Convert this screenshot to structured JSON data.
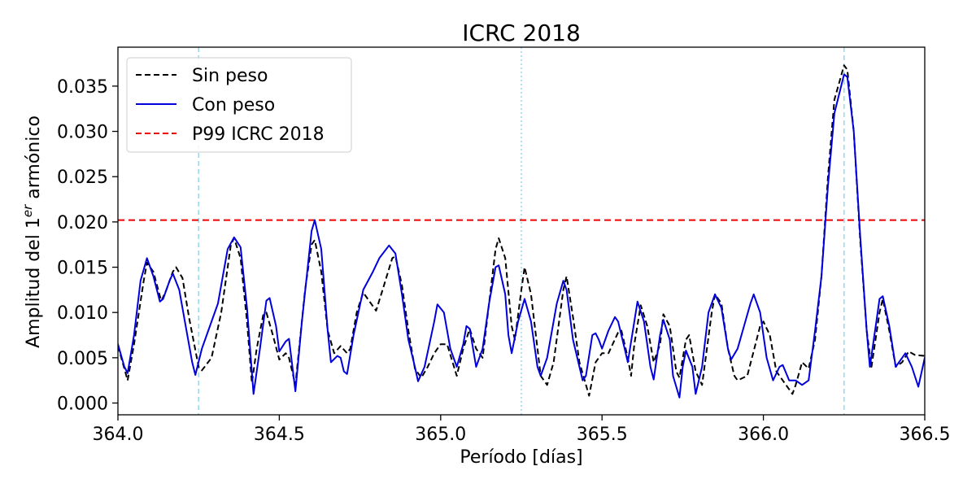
{
  "chart_data": {
    "type": "line",
    "title": "ICRC 2018",
    "xlabel": "Período [días]",
    "ylabel_prefix": "Amplitud del 1",
    "ylabel_sup": "er",
    "ylabel_suffix": " armónico",
    "xlim": [
      364.0,
      366.5
    ],
    "ylim": [
      -0.0013,
      0.0393
    ],
    "xticks": [
      364.0,
      364.5,
      365.0,
      365.5,
      366.0,
      366.5
    ],
    "xtick_labels": [
      "364.0",
      "364.5",
      "365.0",
      "365.5",
      "366.0",
      "366.5"
    ],
    "yticks": [
      0.0,
      0.005,
      0.01,
      0.015,
      0.02,
      0.025,
      0.03,
      0.035
    ],
    "ytick_labels": [
      "0.000",
      "0.005",
      "0.010",
      "0.015",
      "0.020",
      "0.025",
      "0.030",
      "0.035"
    ],
    "legend_position": "top-left",
    "vlines": [
      364.25,
      365.25,
      366.25
    ],
    "colors": {
      "sin_peso": "#000000",
      "con_peso": "#0000dd",
      "p99": "#ee0000",
      "vline": "#9fd8e8"
    },
    "series": [
      {
        "name": "Sin peso",
        "style": "dashed",
        "color": "#000000",
        "points": [
          [
            364.0,
            0.0063
          ],
          [
            364.02,
            0.0038
          ],
          [
            364.03,
            0.0025
          ],
          [
            364.05,
            0.0065
          ],
          [
            364.08,
            0.0135
          ],
          [
            364.09,
            0.0155
          ],
          [
            364.11,
            0.0145
          ],
          [
            364.13,
            0.0118
          ],
          [
            364.135,
            0.0113
          ],
          [
            364.15,
            0.0125
          ],
          [
            364.17,
            0.0145
          ],
          [
            364.18,
            0.015
          ],
          [
            364.2,
            0.0138
          ],
          [
            364.22,
            0.0095
          ],
          [
            364.25,
            0.004
          ],
          [
            364.26,
            0.0036
          ],
          [
            364.29,
            0.005
          ],
          [
            364.32,
            0.01
          ],
          [
            364.35,
            0.0175
          ],
          [
            364.36,
            0.0182
          ],
          [
            364.38,
            0.016
          ],
          [
            364.4,
            0.009
          ],
          [
            364.415,
            0.0022
          ],
          [
            364.43,
            0.006
          ],
          [
            364.45,
            0.0097
          ],
          [
            364.46,
            0.01
          ],
          [
            364.48,
            0.0075
          ],
          [
            364.5,
            0.0048
          ],
          [
            364.52,
            0.0055
          ],
          [
            364.53,
            0.005
          ],
          [
            364.55,
            0.002
          ],
          [
            364.58,
            0.0125
          ],
          [
            364.6,
            0.0175
          ],
          [
            364.61,
            0.018
          ],
          [
            364.63,
            0.0145
          ],
          [
            364.65,
            0.008
          ],
          [
            364.67,
            0.0055
          ],
          [
            364.69,
            0.0063
          ],
          [
            364.71,
            0.0055
          ],
          [
            364.72,
            0.006
          ],
          [
            364.74,
            0.01
          ],
          [
            364.76,
            0.0122
          ],
          [
            364.78,
            0.0112
          ],
          [
            364.8,
            0.0102
          ],
          [
            364.82,
            0.0125
          ],
          [
            364.85,
            0.016
          ],
          [
            364.86,
            0.0162
          ],
          [
            364.88,
            0.013
          ],
          [
            364.9,
            0.008
          ],
          [
            364.92,
            0.0038
          ],
          [
            364.94,
            0.0028
          ],
          [
            364.96,
            0.004
          ],
          [
            364.98,
            0.0055
          ],
          [
            365.0,
            0.0065
          ],
          [
            365.02,
            0.0065
          ],
          [
            365.05,
            0.003
          ],
          [
            365.07,
            0.006
          ],
          [
            365.09,
            0.0082
          ],
          [
            365.11,
            0.006
          ],
          [
            365.13,
            0.005
          ],
          [
            365.15,
            0.011
          ],
          [
            365.17,
            0.017
          ],
          [
            365.18,
            0.0182
          ],
          [
            365.2,
            0.016
          ],
          [
            365.22,
            0.0085
          ],
          [
            365.23,
            0.007
          ],
          [
            365.25,
            0.0125
          ],
          [
            365.26,
            0.015
          ],
          [
            365.28,
            0.012
          ],
          [
            365.31,
            0.003
          ],
          [
            365.33,
            0.002
          ],
          [
            365.35,
            0.0045
          ],
          [
            365.38,
            0.0125
          ],
          [
            365.39,
            0.014
          ],
          [
            365.41,
            0.0095
          ],
          [
            365.43,
            0.0045
          ],
          [
            365.46,
            0.0008
          ],
          [
            365.48,
            0.0045
          ],
          [
            365.5,
            0.0055
          ],
          [
            365.52,
            0.0055
          ],
          [
            365.55,
            0.0078
          ],
          [
            365.56,
            0.008
          ],
          [
            365.58,
            0.005
          ],
          [
            365.59,
            0.003
          ],
          [
            365.6,
            0.0065
          ],
          [
            365.62,
            0.0108
          ],
          [
            365.64,
            0.0085
          ],
          [
            365.66,
            0.0045
          ],
          [
            365.68,
            0.0065
          ],
          [
            365.69,
            0.0098
          ],
          [
            365.71,
            0.0085
          ],
          [
            365.73,
            0.0035
          ],
          [
            365.74,
            0.0028
          ],
          [
            365.76,
            0.007
          ],
          [
            365.77,
            0.0075
          ],
          [
            365.79,
            0.0035
          ],
          [
            365.81,
            0.002
          ],
          [
            365.84,
            0.01
          ],
          [
            365.85,
            0.012
          ],
          [
            365.87,
            0.011
          ],
          [
            365.89,
            0.006
          ],
          [
            365.91,
            0.003
          ],
          [
            365.92,
            0.0025
          ],
          [
            365.95,
            0.003
          ],
          [
            365.99,
            0.0085
          ],
          [
            366.0,
            0.009
          ],
          [
            366.02,
            0.0075
          ],
          [
            366.04,
            0.0035
          ],
          [
            366.06,
            0.0025
          ],
          [
            366.09,
            0.001
          ],
          [
            366.1,
            0.002
          ],
          [
            366.12,
            0.0045
          ],
          [
            366.14,
            0.0038
          ],
          [
            366.16,
            0.007
          ],
          [
            366.18,
            0.014
          ],
          [
            366.2,
            0.025
          ],
          [
            366.22,
            0.0335
          ],
          [
            366.25,
            0.0373
          ],
          [
            366.26,
            0.0368
          ],
          [
            366.28,
            0.03
          ],
          [
            366.3,
            0.018
          ],
          [
            366.32,
            0.008
          ],
          [
            366.335,
            0.004
          ],
          [
            366.36,
            0.01
          ],
          [
            366.37,
            0.0115
          ],
          [
            366.39,
            0.008
          ],
          [
            366.41,
            0.004
          ],
          [
            366.43,
            0.0045
          ],
          [
            366.45,
            0.0057
          ],
          [
            366.47,
            0.0053
          ],
          [
            366.5,
            0.0052
          ]
        ]
      },
      {
        "name": "Con peso",
        "style": "solid",
        "color": "#0000dd",
        "points": [
          [
            364.0,
            0.0065
          ],
          [
            364.02,
            0.004
          ],
          [
            364.03,
            0.0033
          ],
          [
            364.05,
            0.0075
          ],
          [
            364.07,
            0.0135
          ],
          [
            364.09,
            0.016
          ],
          [
            364.11,
            0.014
          ],
          [
            364.13,
            0.0112
          ],
          [
            364.14,
            0.0115
          ],
          [
            364.16,
            0.0135
          ],
          [
            364.17,
            0.0143
          ],
          [
            364.19,
            0.0125
          ],
          [
            364.21,
            0.0085
          ],
          [
            364.23,
            0.0045
          ],
          [
            364.24,
            0.0031
          ],
          [
            364.26,
            0.006
          ],
          [
            364.28,
            0.008
          ],
          [
            364.31,
            0.011
          ],
          [
            364.34,
            0.017
          ],
          [
            364.36,
            0.0183
          ],
          [
            364.38,
            0.0172
          ],
          [
            364.4,
            0.0105
          ],
          [
            364.42,
            0.001
          ],
          [
            364.44,
            0.006
          ],
          [
            364.46,
            0.0113
          ],
          [
            364.47,
            0.0116
          ],
          [
            364.49,
            0.0085
          ],
          [
            364.5,
            0.0057
          ],
          [
            364.52,
            0.0068
          ],
          [
            364.53,
            0.0071
          ],
          [
            364.55,
            0.0013
          ],
          [
            364.57,
            0.009
          ],
          [
            364.6,
            0.019
          ],
          [
            364.61,
            0.0202
          ],
          [
            364.63,
            0.017
          ],
          [
            364.65,
            0.008
          ],
          [
            364.66,
            0.0045
          ],
          [
            364.68,
            0.0052
          ],
          [
            364.69,
            0.005
          ],
          [
            364.7,
            0.0035
          ],
          [
            364.71,
            0.0032
          ],
          [
            364.73,
            0.0075
          ],
          [
            364.76,
            0.0125
          ],
          [
            364.79,
            0.0145
          ],
          [
            364.81,
            0.016
          ],
          [
            364.84,
            0.0174
          ],
          [
            364.86,
            0.0165
          ],
          [
            364.88,
            0.012
          ],
          [
            364.9,
            0.007
          ],
          [
            364.92,
            0.004
          ],
          [
            364.93,
            0.0024
          ],
          [
            364.95,
            0.004
          ],
          [
            364.98,
            0.009
          ],
          [
            364.99,
            0.0109
          ],
          [
            365.01,
            0.01
          ],
          [
            365.03,
            0.006
          ],
          [
            365.05,
            0.004
          ],
          [
            365.07,
            0.0065
          ],
          [
            365.08,
            0.0085
          ],
          [
            365.09,
            0.0082
          ],
          [
            365.11,
            0.004
          ],
          [
            365.13,
            0.006
          ],
          [
            365.15,
            0.011
          ],
          [
            365.17,
            0.015
          ],
          [
            365.18,
            0.0152
          ],
          [
            365.2,
            0.012
          ],
          [
            365.21,
            0.0075
          ],
          [
            365.22,
            0.0055
          ],
          [
            365.24,
            0.009
          ],
          [
            365.26,
            0.0115
          ],
          [
            365.28,
            0.009
          ],
          [
            365.3,
            0.004
          ],
          [
            365.31,
            0.003
          ],
          [
            365.33,
            0.005
          ],
          [
            365.36,
            0.011
          ],
          [
            365.38,
            0.0135
          ],
          [
            365.39,
            0.0125
          ],
          [
            365.41,
            0.007
          ],
          [
            365.43,
            0.004
          ],
          [
            365.44,
            0.0025
          ],
          [
            365.45,
            0.003
          ],
          [
            365.47,
            0.0075
          ],
          [
            365.48,
            0.0077
          ],
          [
            365.49,
            0.007
          ],
          [
            365.5,
            0.006
          ],
          [
            365.52,
            0.008
          ],
          [
            365.54,
            0.0095
          ],
          [
            365.55,
            0.009
          ],
          [
            365.57,
            0.006
          ],
          [
            365.58,
            0.0045
          ],
          [
            365.6,
            0.009
          ],
          [
            365.61,
            0.0112
          ],
          [
            365.63,
            0.009
          ],
          [
            365.65,
            0.004
          ],
          [
            365.66,
            0.0026
          ],
          [
            365.68,
            0.0075
          ],
          [
            365.69,
            0.0092
          ],
          [
            365.71,
            0.007
          ],
          [
            365.72,
            0.003
          ],
          [
            365.74,
            0.0006
          ],
          [
            365.75,
            0.004
          ],
          [
            365.76,
            0.0058
          ],
          [
            365.78,
            0.004
          ],
          [
            365.79,
            0.001
          ],
          [
            365.81,
            0.004
          ],
          [
            365.83,
            0.01
          ],
          [
            365.85,
            0.012
          ],
          [
            365.87,
            0.0105
          ],
          [
            365.89,
            0.006
          ],
          [
            365.9,
            0.0048
          ],
          [
            365.92,
            0.006
          ],
          [
            365.94,
            0.0085
          ],
          [
            365.96,
            0.011
          ],
          [
            365.97,
            0.012
          ],
          [
            365.99,
            0.01
          ],
          [
            366.01,
            0.005
          ],
          [
            366.03,
            0.0025
          ],
          [
            366.05,
            0.004
          ],
          [
            366.06,
            0.0042
          ],
          [
            366.08,
            0.0025
          ],
          [
            366.1,
            0.0025
          ],
          [
            366.12,
            0.002
          ],
          [
            366.14,
            0.0025
          ],
          [
            366.16,
            0.008
          ],
          [
            366.18,
            0.014
          ],
          [
            366.2,
            0.024
          ],
          [
            366.22,
            0.032
          ],
          [
            366.25,
            0.0363
          ],
          [
            366.26,
            0.036
          ],
          [
            366.28,
            0.03
          ],
          [
            366.3,
            0.0185
          ],
          [
            366.32,
            0.008
          ],
          [
            366.33,
            0.004
          ],
          [
            366.35,
            0.009
          ],
          [
            366.36,
            0.0115
          ],
          [
            366.37,
            0.0118
          ],
          [
            366.39,
            0.0085
          ],
          [
            366.41,
            0.004
          ],
          [
            366.43,
            0.005
          ],
          [
            366.44,
            0.0055
          ],
          [
            366.46,
            0.004
          ],
          [
            366.48,
            0.0018
          ],
          [
            366.5,
            0.005
          ]
        ]
      },
      {
        "name": "P99 ICRC 2018",
        "style": "dashed",
        "color": "#ee0000",
        "constant_y": 0.0202
      }
    ]
  }
}
